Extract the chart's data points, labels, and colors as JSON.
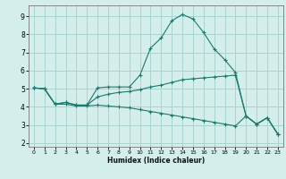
{
  "xlabel": "Humidex (Indice chaleur)",
  "background_color": "#d4eeeb",
  "grid_color": "#aad4d0",
  "line_color": "#1a7a6e",
  "xlim": [
    -0.5,
    23.5
  ],
  "ylim": [
    1.8,
    9.6
  ],
  "xticks": [
    0,
    1,
    2,
    3,
    4,
    5,
    6,
    7,
    8,
    9,
    10,
    11,
    12,
    13,
    14,
    15,
    16,
    17,
    18,
    19,
    20,
    21,
    22,
    23
  ],
  "yticks": [
    2,
    3,
    4,
    5,
    6,
    7,
    8,
    9
  ],
  "series": [
    {
      "x": [
        0,
        1,
        2,
        3,
        4,
        5,
        6,
        7,
        8,
        9,
        10,
        11,
        12,
        13,
        14,
        15,
        16,
        17,
        18,
        19,
        20,
        21,
        22,
        23
      ],
      "y": [
        5.05,
        5.0,
        4.15,
        4.25,
        4.1,
        4.1,
        5.05,
        5.1,
        5.1,
        5.1,
        5.75,
        7.25,
        7.8,
        8.75,
        9.1,
        8.85,
        8.1,
        7.2,
        6.6,
        5.9,
        3.5,
        3.05,
        3.4,
        2.5
      ]
    },
    {
      "x": [
        0,
        1,
        2,
        3,
        4,
        5,
        6,
        7,
        8,
        9,
        10,
        11,
        12,
        13,
        14,
        15,
        16,
        17,
        18,
        19,
        20,
        21,
        22,
        23
      ],
      "y": [
        5.05,
        5.0,
        4.15,
        4.25,
        4.1,
        4.1,
        4.55,
        4.7,
        4.8,
        4.85,
        4.95,
        5.1,
        5.2,
        5.35,
        5.5,
        5.55,
        5.6,
        5.65,
        5.7,
        5.75,
        3.5,
        3.05,
        3.4,
        2.5
      ]
    },
    {
      "x": [
        0,
        1,
        2,
        3,
        4,
        5,
        6,
        7,
        8,
        9,
        10,
        11,
        12,
        13,
        14,
        15,
        16,
        17,
        18,
        19,
        20,
        21,
        22,
        23
      ],
      "y": [
        5.05,
        5.0,
        4.15,
        4.15,
        4.05,
        4.05,
        4.1,
        4.05,
        4.0,
        3.95,
        3.85,
        3.75,
        3.65,
        3.55,
        3.45,
        3.35,
        3.25,
        3.15,
        3.05,
        2.95,
        3.5,
        3.05,
        3.4,
        2.5
      ]
    }
  ]
}
